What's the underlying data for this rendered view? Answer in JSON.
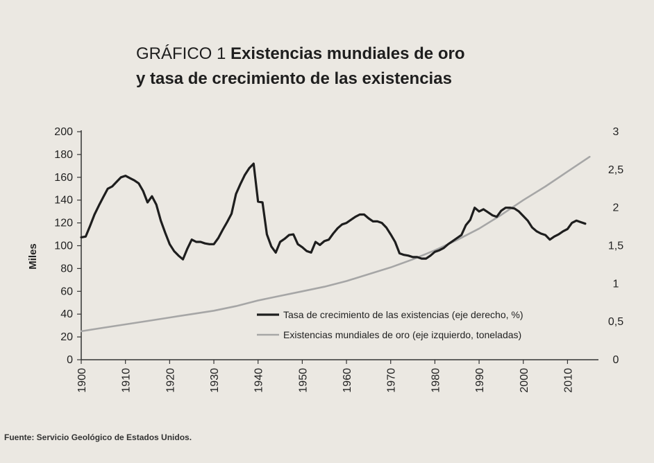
{
  "header": {
    "label": "GRÁFICO 1",
    "title_line1": "Existencias mundiales de oro",
    "title_line2": "y tasa de crecimiento de las existencias"
  },
  "source": "Fuente: Servicio Geológico de Estados Unidos.",
  "chart_data": {
    "type": "line",
    "ylabel": "Miles",
    "xlim": [
      1900,
      2017
    ],
    "xticks": [
      "1900",
      "1910",
      "1920",
      "1930",
      "1940",
      "1950",
      "1960",
      "1970",
      "1980",
      "1990",
      "2000",
      "2010"
    ],
    "ylim_left": [
      0,
      200
    ],
    "yticks_left": [
      "0",
      "20",
      "40",
      "60",
      "80",
      "100",
      "120",
      "140",
      "160",
      "180",
      "200"
    ],
    "ylim_right": [
      0,
      3
    ],
    "yticks_right": [
      "0",
      "0,5",
      "1",
      "1,5",
      "2",
      "2,5",
      "3"
    ],
    "legend_position": "bottom-right",
    "colors": {
      "growth": "#1e1e1e",
      "stocks": "#a6a6a6"
    },
    "series": [
      {
        "name": "Tasa de crecimiento de las existencias (eje derecho, %)",
        "axis": "right",
        "x": [
          1900,
          1901,
          1902,
          1903,
          1904,
          1905,
          1906,
          1907,
          1908,
          1909,
          1910,
          1911,
          1912,
          1913,
          1914,
          1915,
          1916,
          1917,
          1918,
          1919,
          1920,
          1921,
          1922,
          1923,
          1924,
          1925,
          1926,
          1927,
          1928,
          1929,
          1930,
          1931,
          1932,
          1933,
          1934,
          1935,
          1936,
          1937,
          1938,
          1939,
          1940,
          1941,
          1942,
          1943,
          1944,
          1945,
          1946,
          1947,
          1948,
          1949,
          1950,
          1951,
          1952,
          1953,
          1954,
          1955,
          1956,
          1957,
          1958,
          1959,
          1960,
          1961,
          1962,
          1963,
          1964,
          1965,
          1966,
          1967,
          1968,
          1969,
          1970,
          1971,
          1972,
          1973,
          1974,
          1975,
          1976,
          1977,
          1978,
          1979,
          1980,
          1981,
          1982,
          1983,
          1984,
          1985,
          1986,
          1987,
          1988,
          1989,
          1990,
          1991,
          1992,
          1993,
          1994,
          1995,
          1996,
          1997,
          1998,
          1999,
          2000,
          2001,
          2002,
          2003,
          2004,
          2005,
          2006,
          2007,
          2008,
          2009,
          2010,
          2011,
          2012,
          2013,
          2014
        ],
        "y": [
          1.61,
          1.62,
          1.76,
          1.91,
          2.03,
          2.14,
          2.25,
          2.28,
          2.34,
          2.4,
          2.42,
          2.39,
          2.36,
          2.32,
          2.22,
          2.07,
          2.15,
          2.04,
          1.83,
          1.67,
          1.52,
          1.43,
          1.37,
          1.32,
          1.46,
          1.58,
          1.55,
          1.55,
          1.53,
          1.52,
          1.52,
          1.6,
          1.71,
          1.81,
          1.92,
          2.18,
          2.31,
          2.43,
          2.52,
          2.58,
          2.08,
          2.07,
          1.65,
          1.49,
          1.41,
          1.55,
          1.59,
          1.64,
          1.65,
          1.52,
          1.48,
          1.43,
          1.41,
          1.55,
          1.51,
          1.56,
          1.58,
          1.66,
          1.73,
          1.78,
          1.8,
          1.84,
          1.88,
          1.91,
          1.91,
          1.86,
          1.82,
          1.82,
          1.8,
          1.74,
          1.65,
          1.55,
          1.4,
          1.38,
          1.37,
          1.35,
          1.35,
          1.33,
          1.33,
          1.37,
          1.42,
          1.44,
          1.47,
          1.52,
          1.56,
          1.6,
          1.64,
          1.77,
          1.84,
          2.0,
          1.95,
          1.98,
          1.94,
          1.9,
          1.88,
          1.96,
          2.0,
          2.0,
          1.99,
          1.95,
          1.89,
          1.83,
          1.74,
          1.69,
          1.66,
          1.64,
          1.58,
          1.62,
          1.65,
          1.69,
          1.72,
          1.8,
          1.83,
          1.81,
          1.79
        ]
      },
      {
        "name": "Existencias mundiales de oro (eje izquierdo, toneladas)",
        "axis": "left",
        "x": [
          1900,
          1905,
          1910,
          1915,
          1920,
          1925,
          1930,
          1935,
          1940,
          1945,
          1950,
          1955,
          1960,
          1965,
          1970,
          1975,
          1980,
          1985,
          1990,
          1995,
          2000,
          2005,
          2010,
          2015
        ],
        "y": [
          25,
          28,
          31,
          34,
          37,
          40,
          43,
          47,
          52,
          56,
          60,
          64,
          69,
          75,
          81,
          88,
          96,
          105,
          115,
          127,
          140,
          152,
          165,
          178
        ]
      }
    ]
  }
}
